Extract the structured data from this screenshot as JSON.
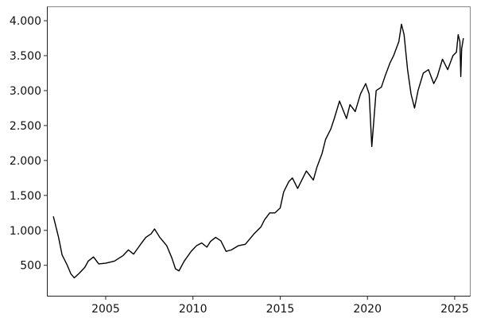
{
  "chart_data": {
    "type": "line",
    "title": "",
    "xlabel": "",
    "ylabel": "",
    "xlim": [
      2001.95,
      2025.55
    ],
    "ylim": [
      110,
      4160
    ],
    "x_ticks": [
      2005,
      2010,
      2015,
      2020,
      2025
    ],
    "x_tick_labels": [
      "2005",
      "2010",
      "2015",
      "2020",
      "2025"
    ],
    "y_ticks": [
      500,
      1000,
      1500,
      2000,
      2500,
      3000,
      3500,
      4000
    ],
    "y_tick_labels": [
      "500",
      "1.000",
      "1.500",
      "2.000",
      "2.500",
      "3.000",
      "3.500",
      "4.000"
    ],
    "grid": false,
    "legend": "none",
    "colors": {
      "line": "#000000",
      "frame": "#888888",
      "axis": "#222222",
      "text": "#111111",
      "background": "#ffffff"
    },
    "series": [
      {
        "x": [
          2002.0,
          2002.1,
          2002.3,
          2002.5,
          2002.8,
          2003.0,
          2003.2,
          2003.5,
          2003.8,
          2004.0,
          2004.3,
          2004.6,
          2005.0,
          2005.5,
          2006.0,
          2006.3,
          2006.6,
          2007.0,
          2007.3,
          2007.6,
          2007.8,
          2008.1,
          2008.5,
          2008.8,
          2009.0,
          2009.2,
          2009.5,
          2009.9,
          2010.2,
          2010.5,
          2010.8,
          2011.0,
          2011.3,
          2011.6,
          2011.9,
          2012.2,
          2012.6,
          2013.0,
          2013.5,
          2013.9,
          2014.1,
          2014.4,
          2014.7,
          2015.0,
          2015.2,
          2015.5,
          2015.7,
          2016.0,
          2016.2,
          2016.5,
          2016.9,
          2017.1,
          2017.4,
          2017.6,
          2017.9,
          2018.1,
          2018.4,
          2018.8,
          2019.0,
          2019.3,
          2019.6,
          2019.9,
          2020.1,
          2020.25,
          2020.5,
          2020.8,
          2021.0,
          2021.3,
          2021.5,
          2021.8,
          2021.95,
          2022.1,
          2022.3,
          2022.5,
          2022.7,
          2022.9,
          2023.2,
          2023.5,
          2023.8,
          2024.0,
          2024.3,
          2024.6,
          2024.9,
          2025.1,
          2025.2,
          2025.3,
          2025.35,
          2025.4,
          2025.5
        ],
        "y": [
          1200,
          1100,
          900,
          650,
          500,
          380,
          320,
          390,
          470,
          560,
          620,
          520,
          530,
          560,
          640,
          720,
          660,
          800,
          900,
          950,
          1020,
          900,
          780,
          600,
          450,
          420,
          560,
          700,
          780,
          820,
          760,
          840,
          900,
          850,
          700,
          720,
          780,
          800,
          950,
          1050,
          1150,
          1250,
          1250,
          1320,
          1550,
          1700,
          1750,
          1600,
          1700,
          1850,
          1720,
          1900,
          2100,
          2300,
          2450,
          2600,
          2850,
          2600,
          2800,
          2700,
          2950,
          3100,
          2950,
          2200,
          3000,
          3050,
          3200,
          3400,
          3500,
          3700,
          3950,
          3800,
          3300,
          2950,
          2750,
          3000,
          3250,
          3300,
          3100,
          3200,
          3450,
          3300,
          3500,
          3550,
          3800,
          3700,
          3200,
          3600,
          3750
        ]
      }
    ]
  }
}
